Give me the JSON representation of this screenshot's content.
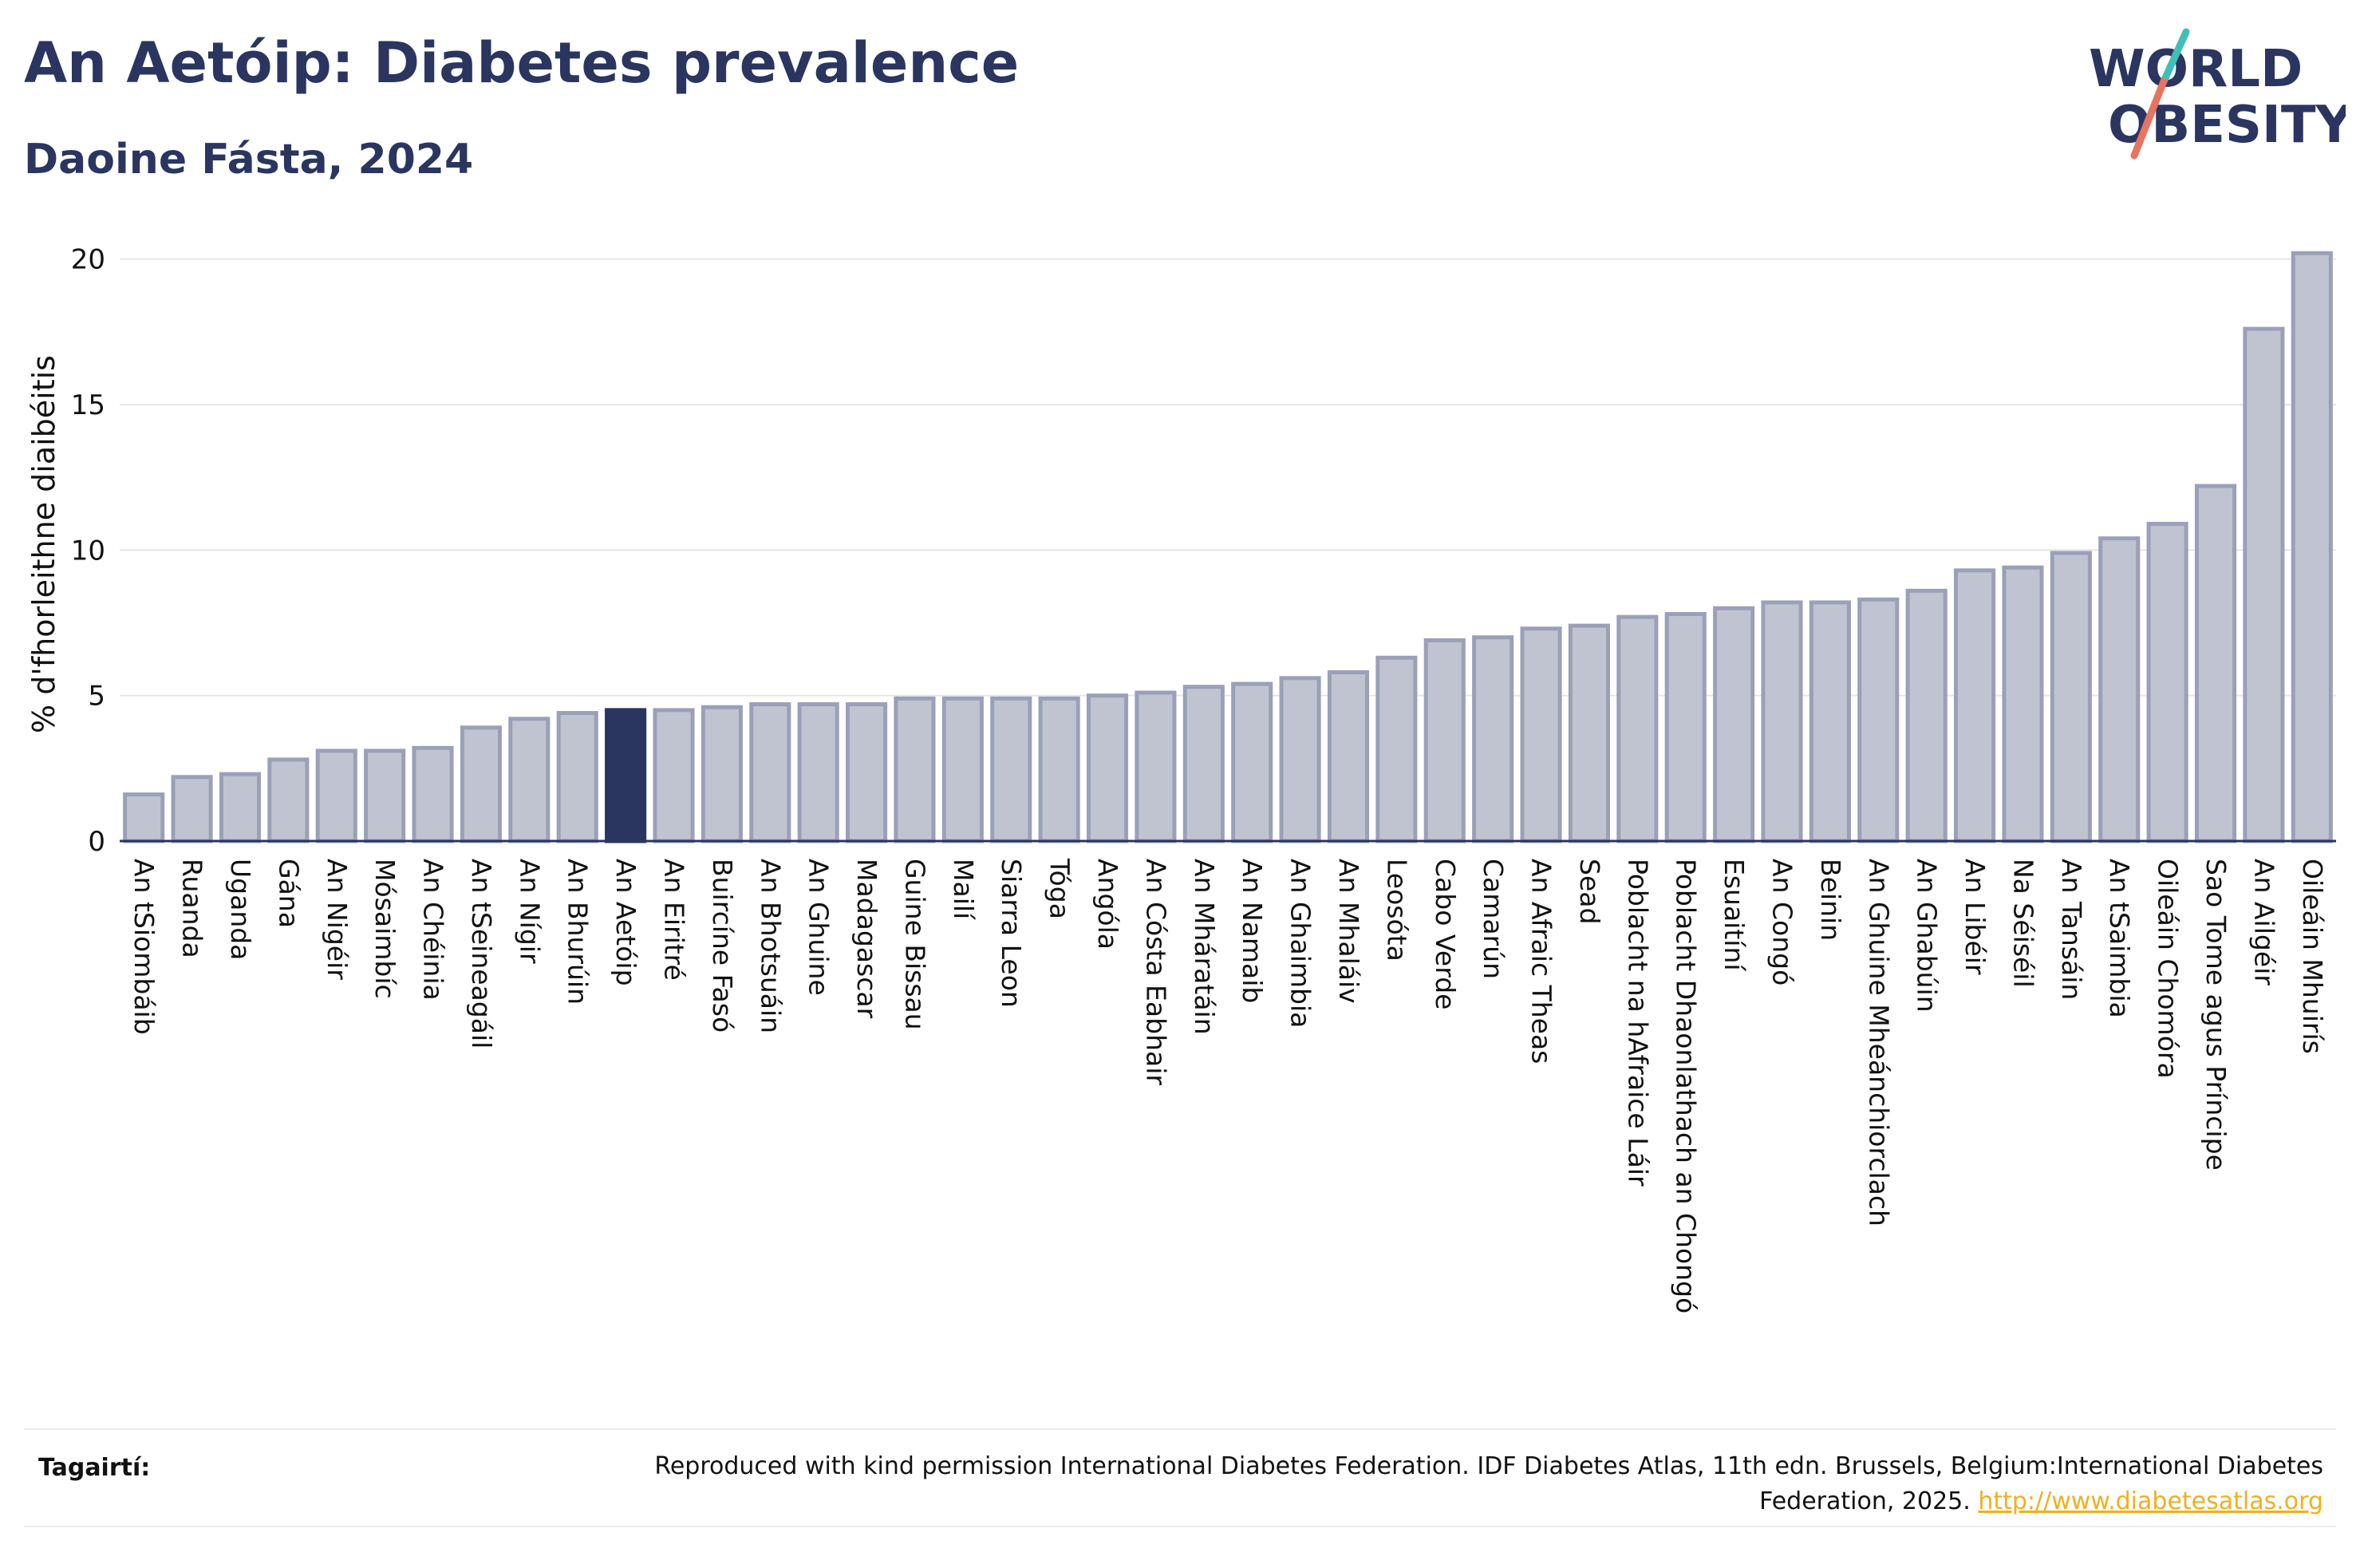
{
  "header": {
    "title": "An Aetóip: Diabetes prevalence",
    "subtitle": "Daoine Fásta, 2024"
  },
  "logo": {
    "line1": "WORLD",
    "line2": "OBESITY",
    "colors": {
      "text": "#2a3560",
      "slash_teal": "#3fbfb8",
      "slash_coral": "#e8735f"
    }
  },
  "chart_data": {
    "type": "bar",
    "ylabel": "% d'fhorleithne diaibéitis",
    "xlabel": "",
    "ylim": [
      0,
      20.4
    ],
    "yticks": [
      0,
      5,
      10,
      15,
      20
    ],
    "grid": true,
    "highlight": "An Aetóip",
    "colors": {
      "bar": "#c0c4d1",
      "bar_edge": "#9aa0b8",
      "highlight": "#2a3560",
      "axis": "#2a3560",
      "grid": "#e6e6e6"
    },
    "categories": [
      "An tSiombáib",
      "Ruanda",
      "Uganda",
      "Gána",
      "An Nigéir",
      "Mósaimbíc",
      "An Chéinia",
      "An tSeineagáil",
      "An Nígir",
      "An Bhurúin",
      "An Aetóip",
      "An Eiritré",
      "Buircíne Fasó",
      "An Bhotsuáin",
      "An Ghuine",
      "Madagascar",
      "Guine Bissau",
      "Mailí",
      "Siarra Leon",
      "Tóga",
      "Angóla",
      "An Cósta Eabhair",
      "An Mháratáin",
      "An Namaib",
      "An Ghaimbia",
      "An Mhaláiv",
      "Leosóta",
      "Cabo Verde",
      "Camarún",
      "An Afraic Theas",
      "Sead",
      "Poblacht na hAfraice Láir",
      "Poblacht Dhaonlathach an Chongó",
      "Esuaitíní",
      "An Congó",
      "Beinin",
      "An Ghuine Mheánchiorclach",
      "An Ghabúin",
      "An Libéir",
      "Na Séiséil",
      "An Tansáin",
      "An tSaimbia",
      "Oileáin Chomóra",
      "Sao Tome agus Príncipe",
      "An Ailgéir",
      "Oileáin Mhuirís"
    ],
    "values": [
      1.6,
      2.2,
      2.3,
      2.8,
      3.1,
      3.1,
      3.2,
      3.9,
      4.2,
      4.4,
      4.5,
      4.5,
      4.6,
      4.7,
      4.7,
      4.7,
      4.9,
      4.9,
      4.9,
      4.9,
      5.0,
      5.1,
      5.3,
      5.4,
      5.6,
      5.8,
      6.3,
      6.9,
      7.0,
      7.3,
      7.4,
      7.7,
      7.8,
      8.0,
      8.2,
      8.2,
      8.3,
      8.6,
      9.3,
      9.4,
      9.9,
      10.4,
      10.9,
      12.2,
      17.6,
      20.2
    ]
  },
  "references": {
    "label": "Tagairtí:",
    "text": "Reproduced with kind permission International Diabetes Federation. IDF Diabetes Atlas, 11th edn. Brussels, Belgium:International Diabetes Federation, 2025.",
    "link": "http://www.diabetesatlas.org"
  }
}
